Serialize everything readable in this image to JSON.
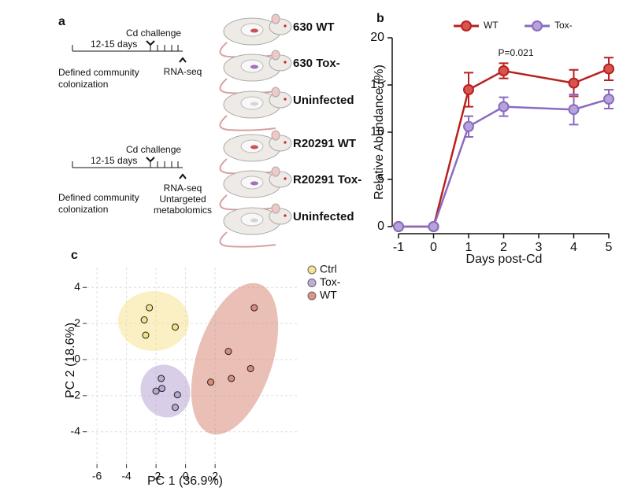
{
  "panel_a": {
    "label": "a",
    "timelines": [
      {
        "duration": "12-15 days",
        "challenge": "Cd challenge",
        "readout": [
          "RNA-seq"
        ],
        "setup": [
          "Defined community",
          "colonization"
        ]
      },
      {
        "duration": "12-15 days",
        "challenge": "Cd challenge",
        "readout": [
          "RNA-seq",
          "Untargeted",
          "metabolomics"
        ],
        "setup": [
          "Defined community",
          "colonization"
        ]
      }
    ],
    "groups": [
      {
        "label": "630 WT",
        "color": "#c0272d"
      },
      {
        "label": "630 Tox-",
        "color": "#8e4fa3"
      },
      {
        "label": "Uninfected",
        "color": "#f5c400"
      },
      {
        "label": "R20291 WT",
        "color": "#c0272d"
      },
      {
        "label": "R20291 Tox-",
        "color": "#8e4fa3"
      },
      {
        "label": "Uninfected",
        "color": "#f5c400"
      }
    ]
  },
  "panel_labels": [
    "b",
    "c"
  ],
  "chart_data": [
    {
      "type": "line",
      "xlabel": "Days post-Cd",
      "ylabel": "Relative Abundance (%)",
      "annotation": "P=0.021",
      "x": [
        -1,
        0,
        1,
        2,
        4,
        5
      ],
      "xlim": [
        -1,
        5
      ],
      "xticks": [
        -1,
        0,
        1,
        2,
        3,
        4,
        5
      ],
      "ylim": [
        0,
        20
      ],
      "yticks": [
        0,
        5,
        10,
        15,
        20
      ],
      "legend": "top",
      "series": [
        {
          "name": "WT",
          "color": "#b8211f",
          "marker": "#d9544f",
          "values": [
            0,
            0,
            14.5,
            16.5,
            15.2,
            16.7
          ],
          "errors": [
            0,
            0,
            1.8,
            0.8,
            1.4,
            1.2
          ]
        },
        {
          "name": "Tox-",
          "color": "#8a6bbf",
          "marker": "#b7a3dc",
          "values": [
            0,
            0,
            10.6,
            12.7,
            12.4,
            13.5
          ],
          "errors": [
            0,
            0,
            1.1,
            1.0,
            1.6,
            1.0
          ]
        }
      ]
    },
    {
      "type": "scatter",
      "xlabel": "PC 1 (36.9%)",
      "ylabel": "PC 2 (18.6%)",
      "xlim": [
        -6.7,
        7.7
      ],
      "xticks": [
        -6,
        -4,
        -2,
        0,
        2
      ],
      "ylim": [
        -5.8,
        5.1
      ],
      "yticks": [
        -4,
        -2,
        0,
        2,
        4
      ],
      "grid": true,
      "series": [
        {
          "name": "Ctrl",
          "color": "#f7e08a",
          "x": [
            -2.45,
            -2.8,
            -2.7,
            -0.7
          ],
          "values": [
            2.87,
            2.2,
            1.35,
            1.8
          ]
        },
        {
          "name": "Tox-",
          "color": "#b8a6d6",
          "x": [
            -1.65,
            -2.0,
            -1.6,
            -0.55,
            -0.7
          ],
          "values": [
            -1.05,
            -1.75,
            -1.6,
            -1.95,
            -2.65
          ]
        },
        {
          "name": "WT",
          "color": "#d98a78",
          "x": [
            4.65,
            2.9,
            4.4,
            3.1,
            1.7
          ],
          "values": [
            2.87,
            0.45,
            -0.5,
            -1.05,
            -1.25
          ]
        }
      ]
    }
  ]
}
